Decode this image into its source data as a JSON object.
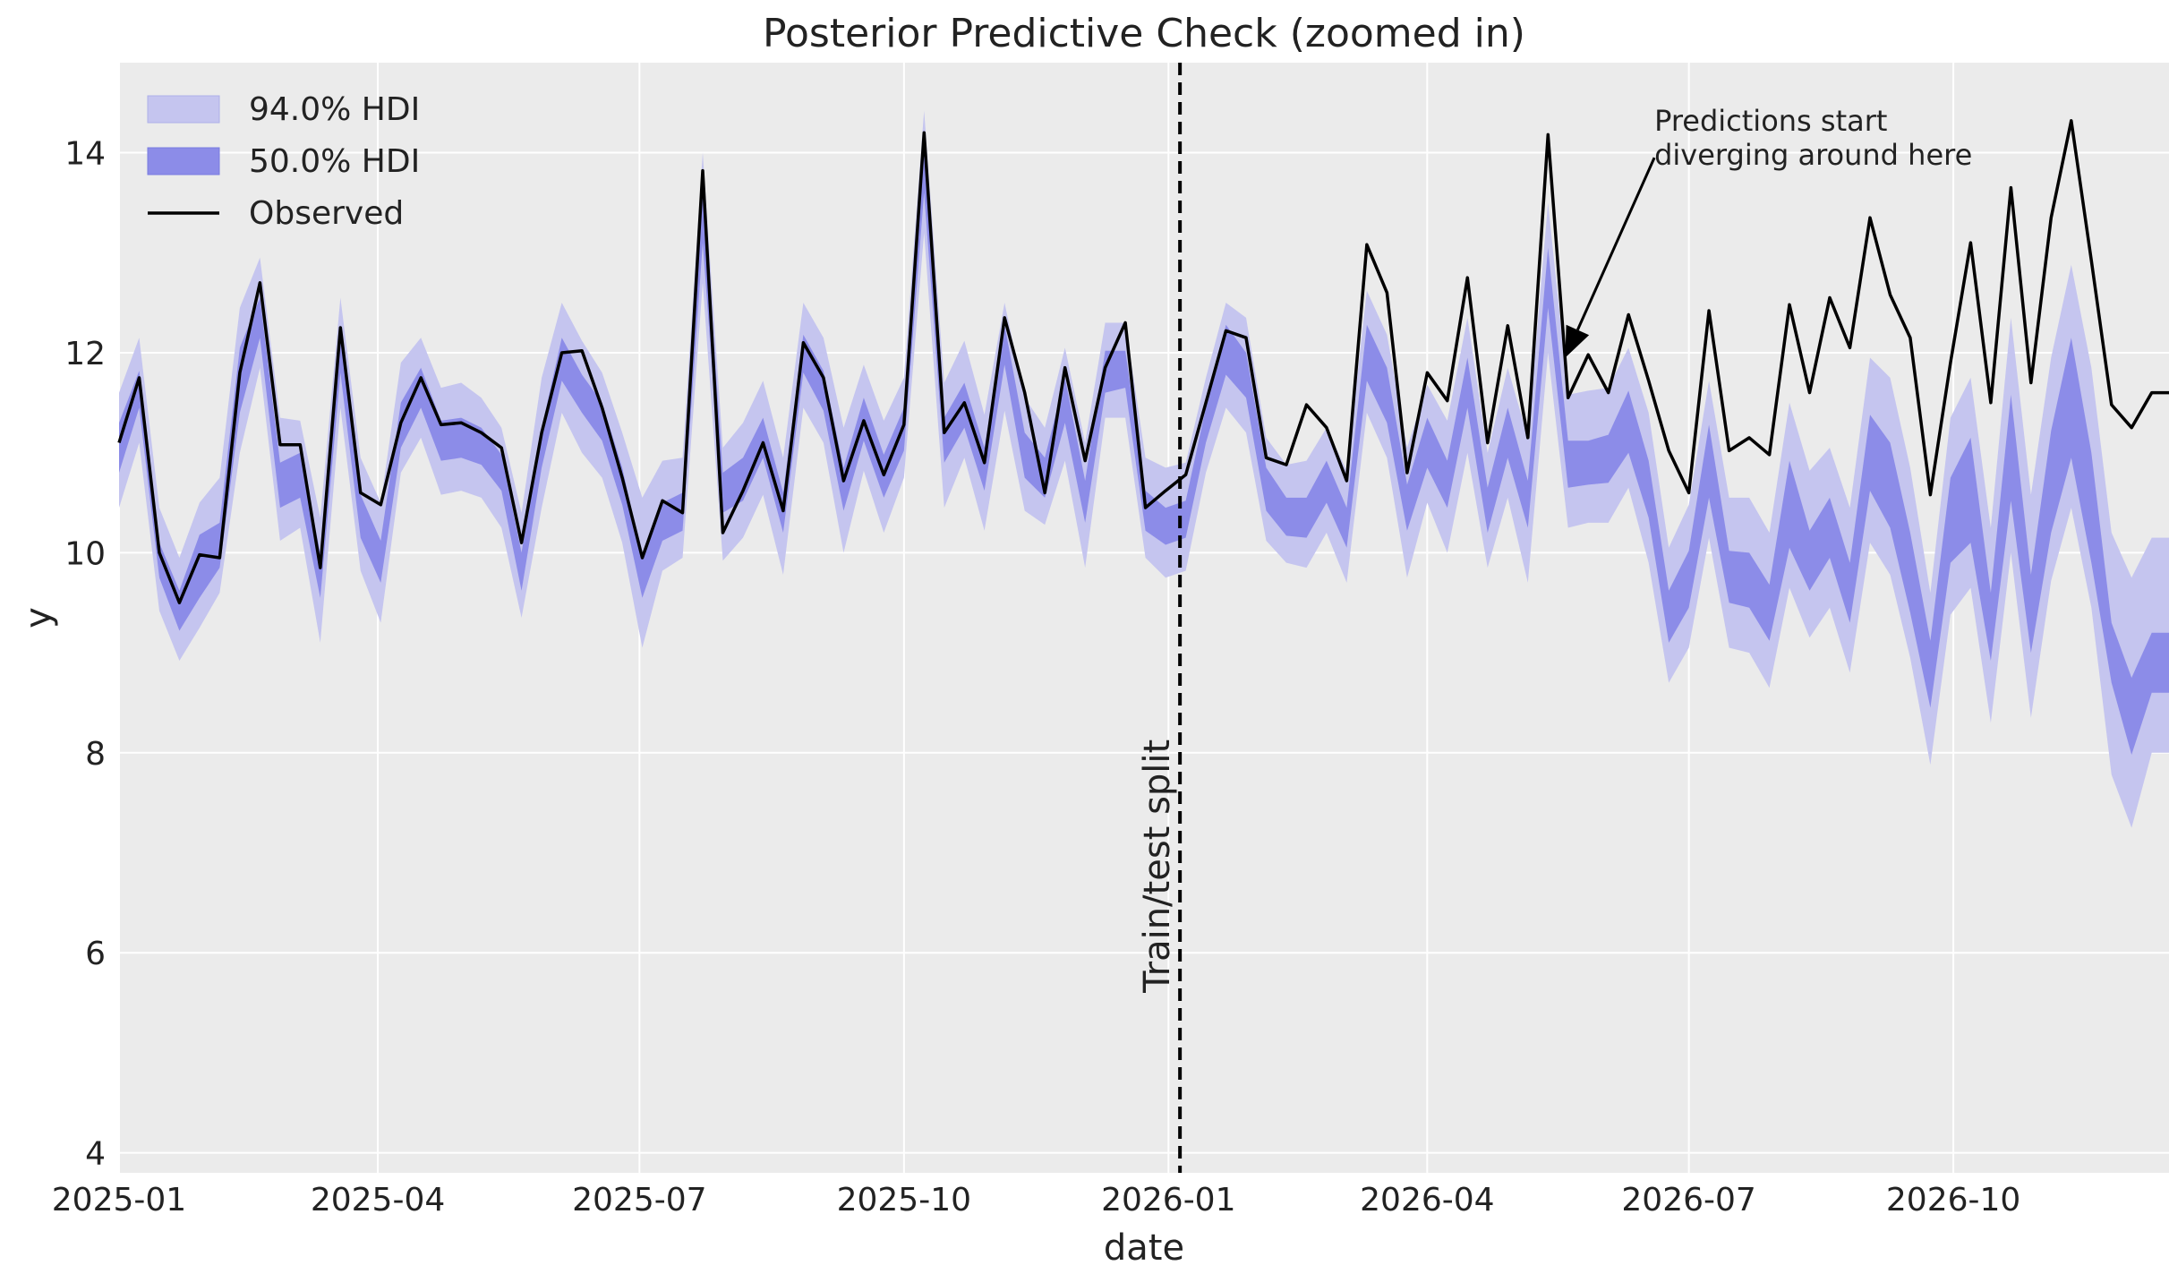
{
  "chart_data": {
    "type": "line",
    "title": "Posterior Predictive Check (zoomed in)",
    "xlabel": "date",
    "ylabel": "y",
    "xlim": [
      "2025-01-01",
      "2026-12-15"
    ],
    "ylim": [
      3.8,
      14.9
    ],
    "x_ticks": [
      "2025-01",
      "2025-04",
      "2025-07",
      "2025-10",
      "2026-01",
      "2026-04",
      "2026-07",
      "2026-10"
    ],
    "y_ticks": [
      4,
      6,
      8,
      10,
      12,
      14
    ],
    "grid": true,
    "legend_position": "top-left",
    "legend": [
      "94.0% HDI",
      "50.0% HDI",
      "Observed"
    ],
    "split": {
      "date": "2026-01-05",
      "label": "Train/test split"
    },
    "annotation": {
      "text": [
        "Predictions start",
        "diverging around here"
      ],
      "date": "2026-06-19",
      "y": 14.15,
      "arrow_to_date": "2026-05-19",
      "arrow_to_y": 11.95
    },
    "colors": {
      "background": "#ebebeb",
      "hdi94": "#c5c5ef",
      "hdi50": "#8c8ce8",
      "observed": "#000000",
      "split": "#000000"
    },
    "series": [
      {
        "name": "Observed",
        "x": [
          "2025-01-01",
          "2025-01-08",
          "2025-01-15",
          "2025-01-22",
          "2025-01-29",
          "2025-02-05",
          "2025-02-12",
          "2025-02-19",
          "2025-02-26",
          "2025-03-05",
          "2025-03-12",
          "2025-03-19",
          "2025-03-26",
          "2025-04-02",
          "2025-04-09",
          "2025-04-16",
          "2025-04-23",
          "2025-04-30",
          "2025-05-07",
          "2025-05-14",
          "2025-05-21",
          "2025-05-28",
          "2025-06-04",
          "2025-06-11",
          "2025-06-18",
          "2025-06-25",
          "2025-07-02",
          "2025-07-09",
          "2025-07-16",
          "2025-07-23",
          "2025-07-30",
          "2025-08-06",
          "2025-08-13",
          "2025-08-20",
          "2025-08-27",
          "2025-09-03",
          "2025-09-10",
          "2025-09-17",
          "2025-09-24",
          "2025-10-01",
          "2025-10-08",
          "2025-10-15",
          "2025-10-22",
          "2025-10-29",
          "2025-11-05",
          "2025-11-12",
          "2025-11-19",
          "2025-11-26",
          "2025-12-03",
          "2025-12-10",
          "2025-12-17",
          "2025-12-24",
          "2025-12-31",
          "2026-01-07",
          "2026-01-14",
          "2026-01-21",
          "2026-01-28",
          "2026-02-04",
          "2026-02-11",
          "2026-02-18",
          "2026-02-25",
          "2026-03-04",
          "2026-03-11",
          "2026-03-18",
          "2026-03-25",
          "2026-04-01",
          "2026-04-08",
          "2026-04-15",
          "2026-04-22",
          "2026-04-29",
          "2026-05-06",
          "2026-05-13",
          "2026-05-20",
          "2026-05-27",
          "2026-06-03",
          "2026-06-10",
          "2026-06-17",
          "2026-06-24",
          "2026-07-01",
          "2026-07-08",
          "2026-07-15",
          "2026-07-22",
          "2026-07-29",
          "2026-08-05",
          "2026-08-12",
          "2026-08-19",
          "2026-08-26",
          "2026-09-02",
          "2026-09-09",
          "2026-09-16",
          "2026-09-23",
          "2026-09-30",
          "2026-10-07",
          "2026-10-14",
          "2026-10-21",
          "2026-10-28",
          "2026-11-04",
          "2026-11-11",
          "2026-11-18",
          "2026-11-25",
          "2026-12-02",
          "2026-12-09",
          "2026-12-15"
        ],
        "y": [
          11.1,
          11.75,
          10.0,
          9.5,
          9.98,
          9.95,
          11.8,
          12.7,
          11.08,
          11.08,
          9.85,
          12.25,
          10.6,
          10.48,
          11.3,
          11.75,
          11.28,
          11.3,
          11.2,
          11.05,
          10.1,
          11.2,
          12.0,
          12.02,
          11.45,
          10.75,
          9.95,
          10.52,
          10.4,
          13.82,
          10.2,
          10.62,
          11.1,
          10.42,
          12.1,
          11.75,
          10.72,
          11.32,
          10.78,
          11.28,
          14.2,
          11.2,
          11.5,
          10.9,
          12.35,
          11.6,
          10.6,
          11.85,
          10.92,
          11.85,
          12.3,
          10.45,
          10.62,
          10.78,
          11.5,
          12.22,
          12.15,
          10.95,
          10.88,
          11.48,
          11.25,
          10.72,
          13.08,
          12.6,
          10.8,
          11.8,
          11.52,
          12.75,
          11.1,
          12.27,
          11.15,
          14.18,
          11.55,
          11.98,
          11.6,
          12.38,
          11.72,
          11.02,
          10.6,
          12.42,
          11.02,
          11.15,
          10.98,
          12.48,
          11.6,
          12.55,
          12.05,
          13.35,
          12.58,
          12.15,
          10.58,
          11.9,
          13.1,
          11.5,
          13.65,
          11.7,
          13.35,
          14.32,
          12.92,
          11.48,
          11.25,
          11.6,
          11.6
        ],
        "hdi50_low": [
          10.8,
          11.45,
          9.75,
          9.22,
          9.55,
          9.85,
          11.4,
          12.15,
          10.45,
          10.55,
          9.55,
          11.8,
          10.15,
          9.7,
          11.05,
          11.45,
          10.92,
          10.95,
          10.88,
          10.62,
          9.62,
          10.85,
          11.72,
          11.4,
          11.12,
          10.48,
          9.55,
          10.12,
          10.22,
          13.1,
          10.4,
          10.52,
          10.95,
          10.2,
          11.8,
          11.42,
          10.42,
          11.12,
          10.55,
          11.02,
          13.6,
          10.9,
          11.25,
          10.62,
          11.88,
          10.75,
          10.55,
          11.3,
          10.3,
          11.6,
          11.65,
          10.22,
          10.08,
          10.15,
          11.1,
          11.78,
          11.55,
          10.42,
          10.17,
          10.15,
          10.5,
          10.05,
          11.72,
          11.3,
          10.22,
          10.85,
          10.45,
          11.45,
          10.2,
          10.95,
          10.25,
          12.45,
          10.65,
          10.68,
          10.7,
          11.0,
          10.35,
          9.1,
          9.45,
          10.55,
          9.5,
          9.45,
          9.12,
          10.05,
          9.62,
          9.95,
          9.3,
          10.62,
          10.25,
          9.4,
          8.45,
          9.9,
          10.1,
          8.92,
          10.52,
          9.0,
          10.2,
          10.95,
          9.9,
          8.7,
          7.98,
          8.6,
          8.6
        ],
        "hdi50_high": [
          11.3,
          11.82,
          10.1,
          9.62,
          10.18,
          10.3,
          12.05,
          12.55,
          10.9,
          11.0,
          10.0,
          12.28,
          10.58,
          10.12,
          11.5,
          11.85,
          11.32,
          11.35,
          11.25,
          10.98,
          10.0,
          11.25,
          12.15,
          11.78,
          11.5,
          10.85,
          9.95,
          10.5,
          10.6,
          13.75,
          10.8,
          10.95,
          11.35,
          10.6,
          12.18,
          11.82,
          10.85,
          11.55,
          10.98,
          11.45,
          14.05,
          11.35,
          11.7,
          11.05,
          12.28,
          11.2,
          10.95,
          11.75,
          10.72,
          12.02,
          12.02,
          10.62,
          10.45,
          10.52,
          11.45,
          12.28,
          12.0,
          10.85,
          10.55,
          10.55,
          10.92,
          10.45,
          12.28,
          11.85,
          10.68,
          11.35,
          10.92,
          11.95,
          10.65,
          11.45,
          10.72,
          13.05,
          11.12,
          11.12,
          11.18,
          11.62,
          10.92,
          9.62,
          10.02,
          11.28,
          10.02,
          10.0,
          9.68,
          10.92,
          10.22,
          10.55,
          9.9,
          11.38,
          11.1,
          10.2,
          9.12,
          10.75,
          11.15,
          9.6,
          11.58,
          9.78,
          11.22,
          12.15,
          11.0,
          9.3,
          8.75,
          9.2,
          9.2
        ],
        "hdi94_low": [
          10.45,
          11.1,
          9.42,
          8.92,
          9.25,
          9.6,
          11.0,
          11.85,
          10.12,
          10.25,
          9.1,
          11.45,
          9.82,
          9.3,
          10.8,
          11.15,
          10.58,
          10.62,
          10.55,
          10.25,
          9.35,
          10.45,
          11.4,
          11.0,
          10.75,
          10.1,
          9.05,
          9.82,
          9.95,
          12.7,
          9.92,
          10.15,
          10.58,
          9.78,
          11.45,
          11.1,
          10.0,
          10.82,
          10.2,
          10.75,
          13.2,
          10.45,
          10.95,
          10.22,
          11.42,
          10.42,
          10.28,
          10.92,
          9.85,
          11.35,
          11.35,
          9.95,
          9.75,
          9.82,
          10.8,
          11.45,
          11.2,
          10.12,
          9.9,
          9.85,
          10.2,
          9.7,
          11.4,
          10.95,
          9.75,
          10.5,
          10.0,
          11.0,
          9.85,
          10.55,
          9.7,
          12.0,
          10.25,
          10.3,
          10.3,
          10.65,
          9.9,
          8.7,
          9.05,
          10.15,
          9.05,
          9.0,
          8.65,
          9.65,
          9.15,
          9.45,
          8.8,
          10.1,
          9.78,
          8.95,
          7.88,
          9.38,
          9.65,
          8.3,
          10.0,
          8.35,
          9.72,
          10.45,
          9.45,
          7.78,
          7.25,
          8.0,
          8.0
        ],
        "hdi94_high": [
          11.6,
          12.15,
          10.45,
          9.95,
          10.5,
          10.75,
          12.45,
          12.95,
          11.35,
          11.32,
          10.35,
          12.55,
          10.95,
          10.5,
          11.9,
          12.15,
          11.65,
          11.7,
          11.55,
          11.25,
          10.4,
          11.75,
          12.5,
          12.12,
          11.8,
          11.2,
          10.55,
          10.92,
          10.95,
          14.0,
          11.05,
          11.3,
          11.72,
          10.95,
          12.5,
          12.15,
          11.25,
          11.88,
          11.32,
          11.75,
          14.42,
          11.7,
          12.12,
          11.38,
          12.5,
          11.55,
          11.25,
          12.05,
          11.1,
          12.3,
          12.3,
          10.95,
          10.85,
          10.9,
          11.75,
          12.5,
          12.35,
          11.15,
          10.88,
          10.92,
          11.25,
          10.82,
          12.62,
          12.18,
          11.05,
          11.68,
          11.32,
          12.35,
          11.0,
          11.85,
          11.15,
          13.5,
          11.58,
          11.62,
          11.65,
          12.05,
          11.4,
          10.05,
          10.48,
          11.72,
          10.55,
          10.55,
          10.2,
          11.5,
          10.82,
          11.05,
          10.45,
          11.95,
          11.75,
          10.85,
          9.6,
          11.35,
          11.75,
          10.25,
          12.35,
          10.58,
          11.95,
          12.88,
          11.85,
          10.2,
          9.75,
          10.15,
          10.15
        ]
      }
    ]
  }
}
